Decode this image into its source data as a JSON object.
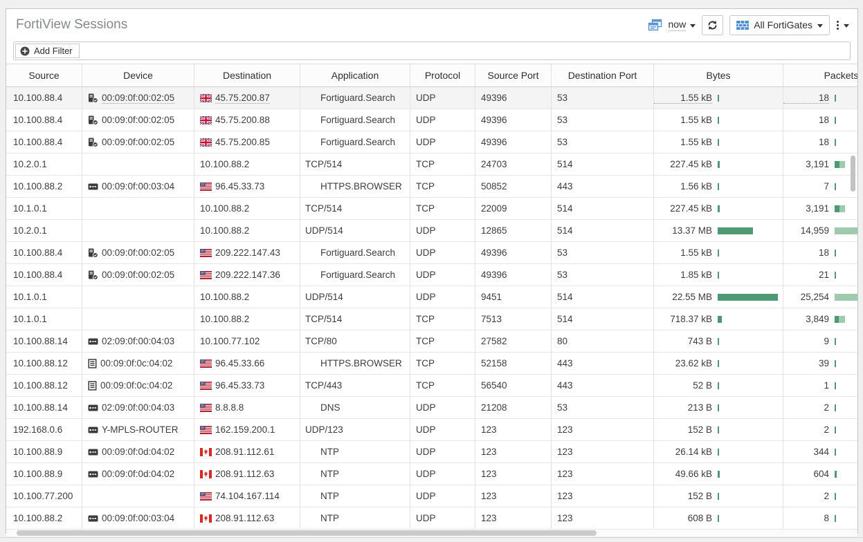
{
  "header": {
    "title": "FortiView Sessions",
    "time_range_label": "now",
    "fortigate_selector_label": "All FortiGates"
  },
  "filter_bar": {
    "add_filter_label": "Add Filter"
  },
  "colors": {
    "bar_dark": "#4E9873",
    "bar_light": "#9ECBAE",
    "accent_blue": "#5E93D1"
  },
  "table": {
    "columns": [
      {
        "label": "Source"
      },
      {
        "label": "Device"
      },
      {
        "label": "Destination"
      },
      {
        "label": "Application"
      },
      {
        "label": "Protocol"
      },
      {
        "label": "Source Port"
      },
      {
        "label": "Destination Port"
      },
      {
        "label": "Bytes"
      },
      {
        "label": "Packets"
      }
    ],
    "rows": [
      {
        "source": "10.100.88.4",
        "device_icon": "server-check-icon",
        "device": "00:09:0f:00:02:05",
        "dest_flag": "gb",
        "destination": "45.75.200.87",
        "application": "Fortiguard.Search",
        "app_indent": true,
        "protocol": "UDP",
        "src_port": "49396",
        "dst_port": "53",
        "bytes": "1.55 kB",
        "bytes_bar": 2,
        "packets": "18",
        "pk_dark": 2,
        "pk_light": 0,
        "hover": true
      },
      {
        "source": "10.100.88.4",
        "device_icon": "server-check-icon",
        "device": "00:09:0f:00:02:05",
        "dest_flag": "gb",
        "destination": "45.75.200.88",
        "application": "Fortiguard.Search",
        "app_indent": true,
        "protocol": "UDP",
        "src_port": "49396",
        "dst_port": "53",
        "bytes": "1.55 kB",
        "bytes_bar": 2,
        "packets": "18",
        "pk_dark": 2,
        "pk_light": 0,
        "hover": false
      },
      {
        "source": "10.100.88.4",
        "device_icon": "server-check-icon",
        "device": "00:09:0f:00:02:05",
        "dest_flag": "gb",
        "destination": "45.75.200.85",
        "application": "Fortiguard.Search",
        "app_indent": true,
        "protocol": "UDP",
        "src_port": "49396",
        "dst_port": "53",
        "bytes": "1.55 kB",
        "bytes_bar": 2,
        "packets": "18",
        "pk_dark": 2,
        "pk_light": 0,
        "hover": false
      },
      {
        "source": "10.2.0.1",
        "device_icon": "",
        "device": "",
        "dest_flag": "",
        "destination": "10.100.88.2",
        "application": "TCP/514",
        "app_indent": false,
        "protocol": "TCP",
        "src_port": "24703",
        "dst_port": "514",
        "bytes": "227.45 kB",
        "bytes_bar": 3,
        "packets": "3,191",
        "pk_dark": 7,
        "pk_light": 8,
        "hover": false
      },
      {
        "source": "10.100.88.2",
        "device_icon": "router-icon",
        "device": "00:09:0f:00:03:04",
        "dest_flag": "us",
        "destination": "96.45.33.73",
        "application": "HTTPS.BROWSER",
        "app_indent": true,
        "protocol": "TCP",
        "src_port": "50852",
        "dst_port": "443",
        "bytes": "1.56 kB",
        "bytes_bar": 2,
        "packets": "7",
        "pk_dark": 2,
        "pk_light": 0,
        "hover": false
      },
      {
        "source": "10.1.0.1",
        "device_icon": "",
        "device": "",
        "dest_flag": "",
        "destination": "10.100.88.2",
        "application": "TCP/514",
        "app_indent": false,
        "protocol": "TCP",
        "src_port": "22009",
        "dst_port": "514",
        "bytes": "227.45 kB",
        "bytes_bar": 3,
        "packets": "3,191",
        "pk_dark": 7,
        "pk_light": 8,
        "hover": false
      },
      {
        "source": "10.2.0.1",
        "device_icon": "",
        "device": "",
        "dest_flag": "",
        "destination": "10.100.88.2",
        "application": "UDP/514",
        "app_indent": false,
        "protocol": "UDP",
        "src_port": "12865",
        "dst_port": "514",
        "bytes": "13.37 MB",
        "bytes_bar": 51,
        "packets": "14,959",
        "pk_dark": 0,
        "pk_light": 48,
        "hover": false
      },
      {
        "source": "10.100.88.4",
        "device_icon": "server-check-icon",
        "device": "00:09:0f:00:02:05",
        "dest_flag": "us",
        "destination": "209.222.147.43",
        "application": "Fortiguard.Search",
        "app_indent": true,
        "protocol": "UDP",
        "src_port": "49396",
        "dst_port": "53",
        "bytes": "1.55 kB",
        "bytes_bar": 2,
        "packets": "18",
        "pk_dark": 2,
        "pk_light": 0,
        "hover": false
      },
      {
        "source": "10.100.88.4",
        "device_icon": "server-check-icon",
        "device": "00:09:0f:00:02:05",
        "dest_flag": "us",
        "destination": "209.222.147.36",
        "application": "Fortiguard.Search",
        "app_indent": true,
        "protocol": "UDP",
        "src_port": "49396",
        "dst_port": "53",
        "bytes": "1.85 kB",
        "bytes_bar": 2,
        "packets": "21",
        "pk_dark": 2,
        "pk_light": 0,
        "hover": false
      },
      {
        "source": "10.1.0.1",
        "device_icon": "",
        "device": "",
        "dest_flag": "",
        "destination": "10.100.88.2",
        "application": "UDP/514",
        "app_indent": false,
        "protocol": "UDP",
        "src_port": "9451",
        "dst_port": "514",
        "bytes": "22.55 MB",
        "bytes_bar": 87,
        "packets": "25,254",
        "pk_dark": 0,
        "pk_light": 48,
        "hover": false
      },
      {
        "source": "10.1.0.1",
        "device_icon": "",
        "device": "",
        "dest_flag": "",
        "destination": "10.100.88.2",
        "application": "TCP/514",
        "app_indent": false,
        "protocol": "TCP",
        "src_port": "7513",
        "dst_port": "514",
        "bytes": "718.37 kB",
        "bytes_bar": 6,
        "packets": "3,849",
        "pk_dark": 6,
        "pk_light": 9,
        "hover": false
      },
      {
        "source": "10.100.88.14",
        "device_icon": "router-icon",
        "device": "02:09:0f:00:04:03",
        "dest_flag": "",
        "destination": "10.100.77.102",
        "application": "TCP/80",
        "app_indent": false,
        "protocol": "TCP",
        "src_port": "27582",
        "dst_port": "80",
        "bytes": "743 B",
        "bytes_bar": 2,
        "packets": "9",
        "pk_dark": 2,
        "pk_light": 0,
        "hover": false
      },
      {
        "source": "10.100.88.12",
        "device_icon": "list-icon",
        "device": "00:09:0f:0c:04:02",
        "dest_flag": "us",
        "destination": "96.45.33.66",
        "application": "HTTPS.BROWSER",
        "app_indent": true,
        "protocol": "TCP",
        "src_port": "52158",
        "dst_port": "443",
        "bytes": "23.62 kB",
        "bytes_bar": 2,
        "packets": "39",
        "pk_dark": 2,
        "pk_light": 0,
        "hover": false
      },
      {
        "source": "10.100.88.12",
        "device_icon": "list-icon",
        "device": "00:09:0f:0c:04:02",
        "dest_flag": "us",
        "destination": "96.45.33.73",
        "application": "TCP/443",
        "app_indent": false,
        "protocol": "TCP",
        "src_port": "56540",
        "dst_port": "443",
        "bytes": "52 B",
        "bytes_bar": 2,
        "packets": "1",
        "pk_dark": 2,
        "pk_light": 0,
        "hover": false
      },
      {
        "source": "10.100.88.14",
        "device_icon": "router-icon",
        "device": "02:09:0f:00:04:03",
        "dest_flag": "us",
        "destination": "8.8.8.8",
        "application": "DNS",
        "app_indent": true,
        "protocol": "UDP",
        "src_port": "21208",
        "dst_port": "53",
        "bytes": "213 B",
        "bytes_bar": 2,
        "packets": "2",
        "pk_dark": 2,
        "pk_light": 0,
        "hover": false
      },
      {
        "source": "192.168.0.6",
        "device_icon": "router-icon",
        "device": "Y-MPLS-ROUTER",
        "dest_flag": "us",
        "destination": "162.159.200.1",
        "application": "UDP/123",
        "app_indent": false,
        "protocol": "UDP",
        "src_port": "123",
        "dst_port": "123",
        "bytes": "152 B",
        "bytes_bar": 2,
        "packets": "2",
        "pk_dark": 2,
        "pk_light": 0,
        "hover": false
      },
      {
        "source": "10.100.88.9",
        "device_icon": "router-icon",
        "device": "00:09:0f:0d:04:02",
        "dest_flag": "ca",
        "destination": "208.91.112.61",
        "application": "NTP",
        "app_indent": true,
        "protocol": "UDP",
        "src_port": "123",
        "dst_port": "123",
        "bytes": "26.14 kB",
        "bytes_bar": 2,
        "packets": "344",
        "pk_dark": 2,
        "pk_light": 0,
        "hover": false
      },
      {
        "source": "10.100.88.9",
        "device_icon": "router-icon",
        "device": "00:09:0f:0d:04:02",
        "dest_flag": "ca",
        "destination": "208.91.112.63",
        "application": "NTP",
        "app_indent": true,
        "protocol": "UDP",
        "src_port": "123",
        "dst_port": "123",
        "bytes": "49.66 kB",
        "bytes_bar": 3,
        "packets": "604",
        "pk_dark": 3,
        "pk_light": 0,
        "hover": false
      },
      {
        "source": "10.100.77.200",
        "device_icon": "",
        "device": "",
        "dest_flag": "us",
        "destination": "74.104.167.114",
        "application": "NTP",
        "app_indent": true,
        "protocol": "UDP",
        "src_port": "123",
        "dst_port": "123",
        "bytes": "152 B",
        "bytes_bar": 2,
        "packets": "2",
        "pk_dark": 2,
        "pk_light": 0,
        "hover": false
      },
      {
        "source": "10.100.88.2",
        "device_icon": "router-icon",
        "device": "00:09:0f:00:03:04",
        "dest_flag": "ca",
        "destination": "208.91.112.63",
        "application": "NTP",
        "app_indent": true,
        "protocol": "UDP",
        "src_port": "123",
        "dst_port": "123",
        "bytes": "608 B",
        "bytes_bar": 2,
        "packets": "8",
        "pk_dark": 2,
        "pk_light": 0,
        "hover": false
      }
    ]
  }
}
